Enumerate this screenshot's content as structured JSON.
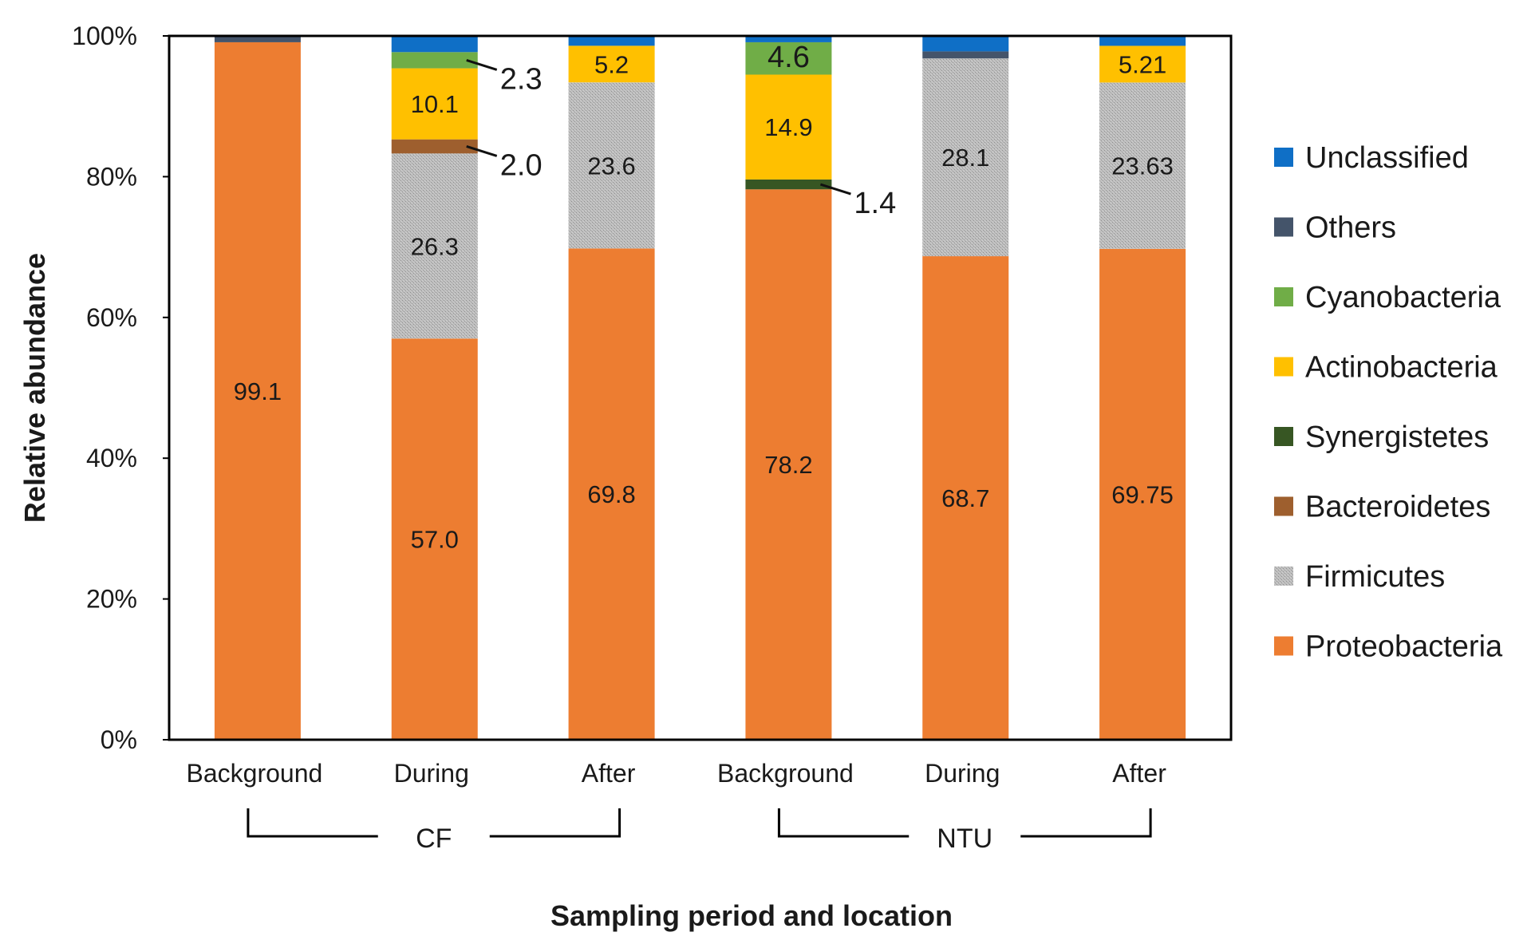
{
  "chart_data": {
    "type": "bar",
    "stacked": true,
    "ylabel": "Relative abundance",
    "xlabel": "Sampling period and location",
    "ylim": [
      0,
      100
    ],
    "yticks": [
      "0%",
      "20%",
      "40%",
      "60%",
      "80%",
      "100%"
    ],
    "categories": [
      "Background",
      "During",
      "After",
      "Background",
      "During",
      "After"
    ],
    "groups": [
      {
        "label": "CF",
        "categories": [
          0,
          1,
          2
        ]
      },
      {
        "label": "NTU",
        "categories": [
          3,
          4,
          5
        ]
      }
    ],
    "legend_position": "right",
    "series": [
      {
        "name": "Proteobacteria",
        "color": "#ED7D31",
        "values": [
          99.1,
          57.0,
          69.8,
          78.2,
          68.7,
          69.75
        ],
        "labels": [
          "99.1",
          "57.0",
          "69.8",
          "78.2",
          "68.7",
          "69.75"
        ]
      },
      {
        "name": "Firmicutes",
        "color": "#A5A5A5",
        "pattern": "stipple",
        "values": [
          0,
          26.3,
          23.6,
          0,
          28.1,
          23.63
        ],
        "labels": [
          "",
          "26.3",
          "23.6",
          "",
          "28.1",
          "23.63"
        ]
      },
      {
        "name": "Bacteroidetes",
        "color": "#9E5F2E",
        "values": [
          0,
          2.0,
          0,
          0,
          0,
          0
        ],
        "labels": [
          "",
          "2.0",
          "",
          "",
          "",
          ""
        ]
      },
      {
        "name": "Synergistetes",
        "color": "#375623",
        "values": [
          0,
          0,
          0,
          1.4,
          0,
          0
        ],
        "labels": [
          "",
          "",
          "",
          "1.4",
          "",
          ""
        ]
      },
      {
        "name": "Actinobacteria",
        "color": "#FFC000",
        "values": [
          0,
          10.1,
          5.2,
          14.9,
          0,
          5.21
        ],
        "labels": [
          "",
          "10.1",
          "5.2",
          "14.9",
          "",
          "5.21"
        ]
      },
      {
        "name": "Cyanobacteria",
        "color": "#70AD47",
        "values": [
          0,
          2.3,
          0,
          4.6,
          0,
          0
        ],
        "labels": [
          "",
          "2.3",
          "",
          "4.6",
          "",
          ""
        ]
      },
      {
        "name": "Others",
        "color": "#44546A",
        "values": [
          0.9,
          0,
          0,
          0,
          1.0,
          0
        ],
        "labels": [
          "",
          "",
          "",
          "",
          "",
          ""
        ]
      },
      {
        "name": "Unclassified",
        "color": "#0F6FC6",
        "values": [
          0,
          2.3,
          1.4,
          0.9,
          2.2,
          1.41
        ],
        "labels": [
          "",
          "",
          "",
          "",
          "",
          ""
        ]
      }
    ],
    "legend_order": [
      "Unclassified",
      "Others",
      "Cyanobacteria",
      "Actinobacteria",
      "Synergistetes",
      "Bacteroidetes",
      "Firmicutes",
      "Proteobacteria"
    ]
  }
}
